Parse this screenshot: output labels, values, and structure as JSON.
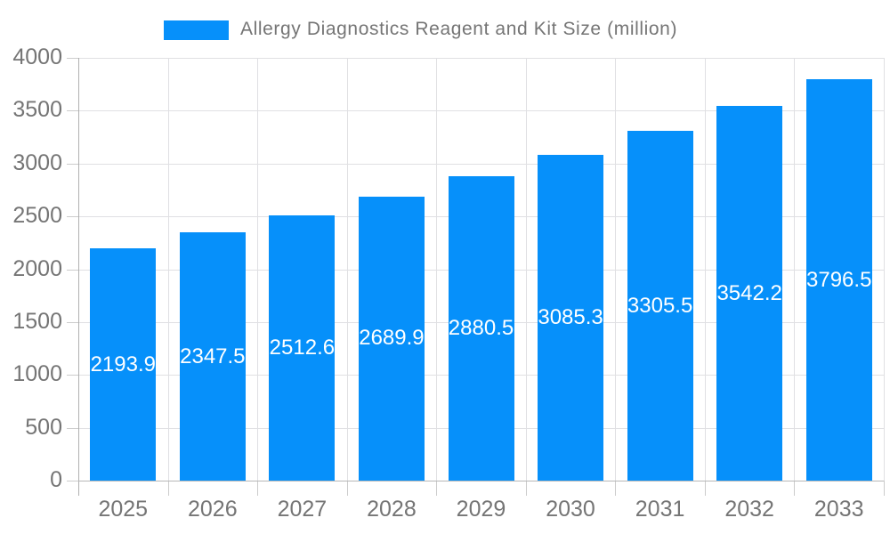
{
  "title": "Allergy Diagnostics Reagent and Kit Size (million)",
  "colors": {
    "bar": "#0690fa",
    "title_text": "#757575",
    "axis_text": "#757575",
    "value_label_text": "#ffffff",
    "gridline": "#e0e0e3",
    "axis_line": "#b0b0b0",
    "background": "#ffffff"
  },
  "chart_data": {
    "type": "bar",
    "title": "Allergy Diagnostics Reagent and Kit Size (million)",
    "categories": [
      "2025",
      "2026",
      "2027",
      "2028",
      "2029",
      "2030",
      "2031",
      "2032",
      "2033"
    ],
    "values": [
      2193.9,
      2347.5,
      2512.6,
      2689.9,
      2880.5,
      3085.3,
      3305.5,
      3542.2,
      3796.5
    ],
    "value_labels": [
      "2193.9",
      "2347.5",
      "2512.6",
      "2689.9",
      "2880.5",
      "3085.3",
      "3305.5",
      "3542.2",
      "3796.5"
    ],
    "xlabel": "",
    "ylabel": "",
    "ylim": [
      0,
      4000
    ],
    "ytick_interval": 500,
    "ytick_labels": [
      "0",
      "500",
      "1000",
      "1500",
      "2000",
      "2500",
      "3000",
      "3500",
      "4000"
    ],
    "grid": true,
    "legend_position": "top",
    "value_label_position": "inside-center",
    "series": [
      {
        "name": "Allergy Diagnostics Reagent and Kit Size (million)",
        "values": [
          2193.9,
          2347.5,
          2512.6,
          2689.9,
          2880.5,
          3085.3,
          3305.5,
          3542.2,
          3796.5
        ]
      }
    ]
  }
}
